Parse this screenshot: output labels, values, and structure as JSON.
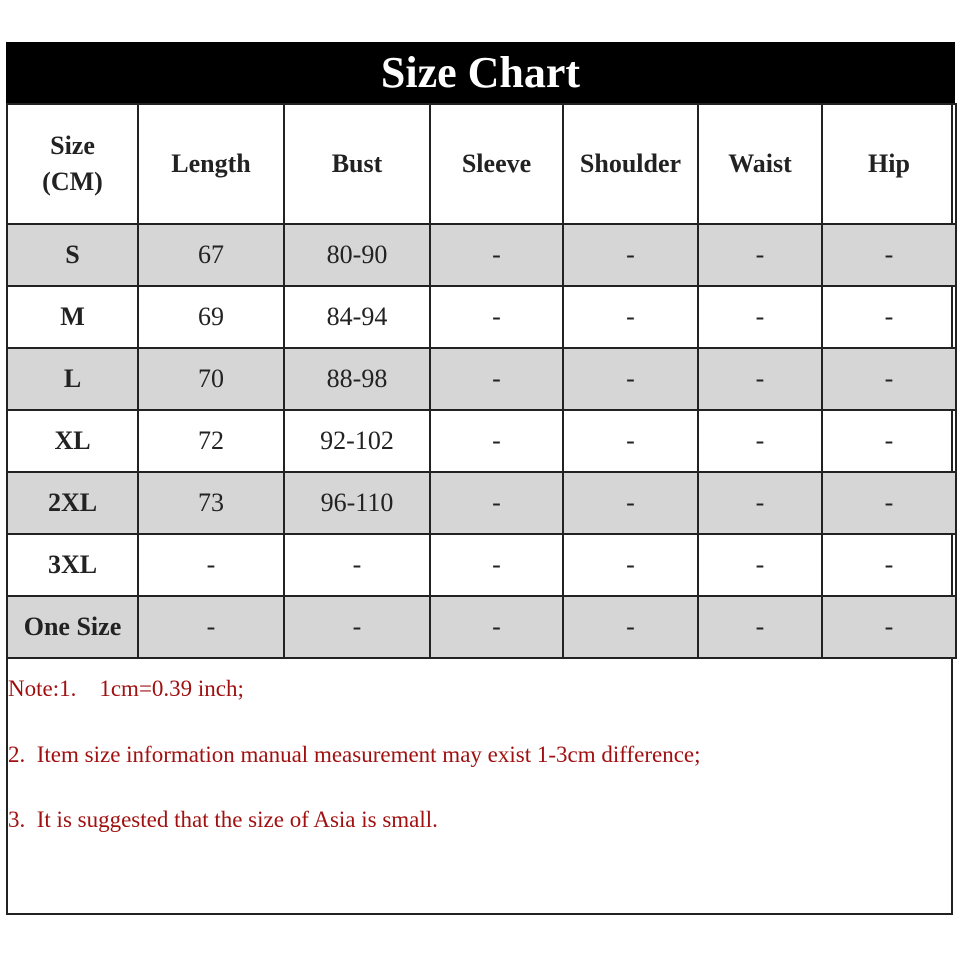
{
  "title": "Size Chart",
  "columns": [
    "Size\n(CM)",
    "Length",
    "Bust",
    "Sleeve",
    "Shoulder",
    "Waist",
    "Hip"
  ],
  "rows": [
    [
      "S",
      "67",
      "80-90",
      "-",
      "-",
      "-",
      "-"
    ],
    [
      "M",
      "69",
      "84-94",
      "-",
      "-",
      "-",
      "-"
    ],
    [
      "L",
      "70",
      "88-98",
      "-",
      "-",
      "-",
      "-"
    ],
    [
      "XL",
      "72",
      "92-102",
      "-",
      "-",
      "-",
      "-"
    ],
    [
      "2XL",
      "73",
      "96-110",
      "-",
      "-",
      "-",
      "-"
    ],
    [
      "3XL",
      "-",
      "-",
      "-",
      "-",
      "-",
      "-"
    ],
    [
      "One Size",
      "-",
      "-",
      "-",
      "-",
      "-",
      "-"
    ]
  ],
  "notes": [
    "Note:1.    1cm=0.39 inch;",
    "2.  Item size information manual measurement may exist 1-3cm difference;",
    "3.  It is suggested that the size of Asia is small."
  ],
  "colors": {
    "stripe": "#d6d6d6",
    "note_text": "#a01010",
    "title_bg": "#000000"
  }
}
